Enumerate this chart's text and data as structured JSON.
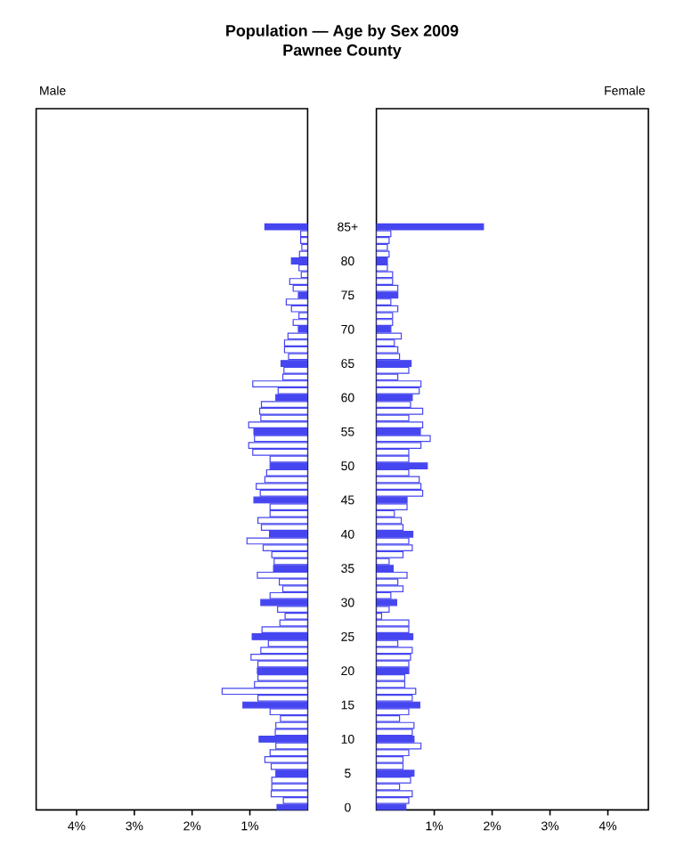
{
  "chart_data": [
    {
      "type": "bar",
      "orientation": "horizontal",
      "title": "Population — Age by Sex 2009",
      "subtitle": "Pawnee County",
      "categories": [
        "85+",
        null,
        null,
        null,
        null,
        "80",
        null,
        null,
        null,
        null,
        "75",
        null,
        null,
        null,
        null,
        "70",
        null,
        null,
        null,
        null,
        "65",
        null,
        null,
        null,
        null,
        "60",
        null,
        null,
        null,
        null,
        "55",
        null,
        null,
        null,
        null,
        "50",
        null,
        null,
        null,
        null,
        "45",
        null,
        null,
        null,
        null,
        "40",
        null,
        null,
        null,
        null,
        "35",
        null,
        null,
        null,
        null,
        "30",
        null,
        null,
        null,
        null,
        "25",
        null,
        null,
        null,
        null,
        "20",
        null,
        null,
        null,
        null,
        "15",
        null,
        null,
        null,
        null,
        "10",
        null,
        null,
        null,
        null,
        "5",
        null,
        null,
        null,
        null,
        "0"
      ],
      "series": [
        {
          "name": "Male",
          "color": "#4646f0",
          "colors": [
            "#4646f0",
            "#ffffff",
            "#ffffff",
            "#ffffff",
            "#ffffff",
            "#4646f0",
            "#ffffff",
            "#ffffff",
            "#ffffff",
            "#ffffff",
            "#4646f0",
            "#ffffff",
            "#ffffff",
            "#ffffff",
            "#ffffff",
            "#4646f0",
            "#ffffff",
            "#ffffff",
            "#ffffff",
            "#ffffff",
            "#4646f0",
            "#ffffff",
            "#ffffff",
            "#ffffff",
            "#ffffff",
            "#4646f0",
            "#ffffff",
            "#ffffff",
            "#ffffff",
            "#ffffff",
            "#4646f0",
            "#ffffff",
            "#ffffff",
            "#ffffff",
            "#ffffff",
            "#4646f0",
            "#ffffff",
            "#ffffff",
            "#ffffff",
            "#ffffff",
            "#4646f0",
            "#ffffff",
            "#ffffff",
            "#ffffff",
            "#ffffff",
            "#4646f0",
            "#ffffff",
            "#ffffff",
            "#ffffff",
            "#ffffff",
            "#4646f0",
            "#ffffff",
            "#ffffff",
            "#ffffff",
            "#ffffff",
            "#4646f0",
            "#ffffff",
            "#ffffff",
            "#ffffff",
            "#ffffff",
            "#4646f0",
            "#ffffff",
            "#ffffff",
            "#ffffff",
            "#ffffff",
            "#4646f0",
            "#ffffff",
            "#ffffff",
            "#ffffff",
            "#ffffff",
            "#4646f0",
            "#ffffff",
            "#ffffff",
            "#ffffff",
            "#ffffff",
            "#4646f0",
            "#ffffff",
            "#ffffff",
            "#ffffff",
            "#ffffff",
            "#4646f0",
            "#ffffff",
            "#ffffff",
            "#ffffff",
            "#ffffff",
            "#4646f0"
          ],
          "values": [
            0.74,
            0.12,
            0.12,
            0.1,
            0.14,
            0.28,
            0.15,
            0.11,
            0.31,
            0.25,
            0.16,
            0.37,
            0.28,
            0.15,
            0.25,
            0.16,
            0.34,
            0.4,
            0.4,
            0.33,
            0.46,
            0.41,
            0.43,
            0.95,
            0.51,
            0.55,
            0.8,
            0.83,
            0.81,
            1.02,
            0.93,
            0.92,
            1.02,
            0.95,
            0.65,
            0.65,
            0.71,
            0.74,
            0.89,
            0.82,
            0.93,
            0.65,
            0.65,
            0.86,
            0.8,
            0.66,
            1.05,
            0.77,
            0.62,
            0.58,
            0.59,
            0.87,
            0.49,
            0.43,
            0.65,
            0.81,
            0.52,
            0.39,
            0.48,
            0.79,
            0.96,
            0.68,
            0.81,
            0.98,
            0.86,
            0.87,
            0.86,
            0.92,
            1.48,
            0.86,
            1.12,
            0.65,
            0.47,
            0.55,
            0.56,
            0.84,
            0.55,
            0.65,
            0.74,
            0.63,
            0.55,
            0.62,
            0.62,
            0.63,
            0.42,
            0.53
          ]
        }
      ],
      "xlim": [
        4.7,
        0
      ],
      "xticks": [
        {
          "value": 4,
          "label": "4%"
        },
        {
          "value": 3,
          "label": "3%"
        },
        {
          "value": 2,
          "label": "2%"
        },
        {
          "value": 1,
          "label": "1%"
        }
      ]
    },
    {
      "type": "bar",
      "orientation": "horizontal",
      "categories": [
        null,
        null,
        null,
        null,
        null,
        null,
        null,
        null,
        null,
        null,
        null,
        null,
        null,
        null,
        null,
        null,
        null,
        null,
        null,
        null,
        null,
        null,
        null,
        null,
        null,
        null,
        null,
        null,
        null,
        null,
        null,
        null,
        null,
        null,
        null,
        null,
        null,
        null,
        null,
        null,
        null,
        null,
        null,
        null,
        null,
        null,
        null,
        null,
        null,
        null,
        null,
        null,
        null,
        null,
        null,
        null,
        null,
        null,
        null,
        null,
        null,
        null,
        null,
        null,
        null,
        null,
        null,
        null,
        null,
        null,
        null,
        null,
        null,
        null,
        null,
        null,
        null,
        null,
        null,
        null,
        null,
        null,
        null,
        null,
        null,
        null
      ],
      "series": [
        {
          "name": "Female",
          "color": "#4646f0",
          "colors": [
            "#4646f0",
            "#ffffff",
            "#ffffff",
            "#ffffff",
            "#ffffff",
            "#4646f0",
            "#ffffff",
            "#ffffff",
            "#ffffff",
            "#ffffff",
            "#4646f0",
            "#ffffff",
            "#ffffff",
            "#ffffff",
            "#ffffff",
            "#4646f0",
            "#ffffff",
            "#ffffff",
            "#ffffff",
            "#ffffff",
            "#4646f0",
            "#ffffff",
            "#ffffff",
            "#ffffff",
            "#ffffff",
            "#4646f0",
            "#ffffff",
            "#ffffff",
            "#ffffff",
            "#ffffff",
            "#4646f0",
            "#ffffff",
            "#ffffff",
            "#ffffff",
            "#ffffff",
            "#4646f0",
            "#ffffff",
            "#ffffff",
            "#ffffff",
            "#ffffff",
            "#4646f0",
            "#ffffff",
            "#ffffff",
            "#ffffff",
            "#ffffff",
            "#4646f0",
            "#ffffff",
            "#ffffff",
            "#ffffff",
            "#ffffff",
            "#4646f0",
            "#ffffff",
            "#ffffff",
            "#ffffff",
            "#ffffff",
            "#4646f0",
            "#ffffff",
            "#ffffff",
            "#ffffff",
            "#ffffff",
            "#4646f0",
            "#ffffff",
            "#ffffff",
            "#ffffff",
            "#ffffff",
            "#4646f0",
            "#ffffff",
            "#ffffff",
            "#ffffff",
            "#ffffff",
            "#4646f0",
            "#ffffff",
            "#ffffff",
            "#ffffff",
            "#ffffff",
            "#4646f0",
            "#ffffff",
            "#ffffff",
            "#ffffff",
            "#ffffff",
            "#4646f0",
            "#ffffff",
            "#ffffff",
            "#ffffff",
            "#ffffff",
            "#4646f0"
          ],
          "values": [
            1.85,
            0.25,
            0.22,
            0.19,
            0.22,
            0.19,
            0.19,
            0.28,
            0.28,
            0.37,
            0.37,
            0.25,
            0.37,
            0.28,
            0.28,
            0.25,
            0.43,
            0.31,
            0.37,
            0.4,
            0.6,
            0.56,
            0.37,
            0.77,
            0.74,
            0.62,
            0.59,
            0.8,
            0.56,
            0.8,
            0.76,
            0.93,
            0.77,
            0.56,
            0.56,
            0.88,
            0.56,
            0.74,
            0.77,
            0.8,
            0.53,
            0.53,
            0.31,
            0.43,
            0.46,
            0.63,
            0.56,
            0.62,
            0.46,
            0.22,
            0.29,
            0.53,
            0.37,
            0.46,
            0.25,
            0.35,
            0.22,
            0.09,
            0.56,
            0.56,
            0.63,
            0.37,
            0.62,
            0.59,
            0.56,
            0.56,
            0.49,
            0.49,
            0.68,
            0.62,
            0.75,
            0.56,
            0.4,
            0.65,
            0.62,
            0.65,
            0.77,
            0.56,
            0.46,
            0.46,
            0.65,
            0.59,
            0.4,
            0.62,
            0.56,
            0.51
          ]
        }
      ],
      "xlim": [
        0,
        4.7
      ],
      "xticks": [
        {
          "value": 1,
          "label": "1%"
        },
        {
          "value": 2,
          "label": "2%"
        },
        {
          "value": 3,
          "label": "3%"
        },
        {
          "value": 4,
          "label": "4%"
        }
      ],
      "tick_labels": "x"
    }
  ]
}
